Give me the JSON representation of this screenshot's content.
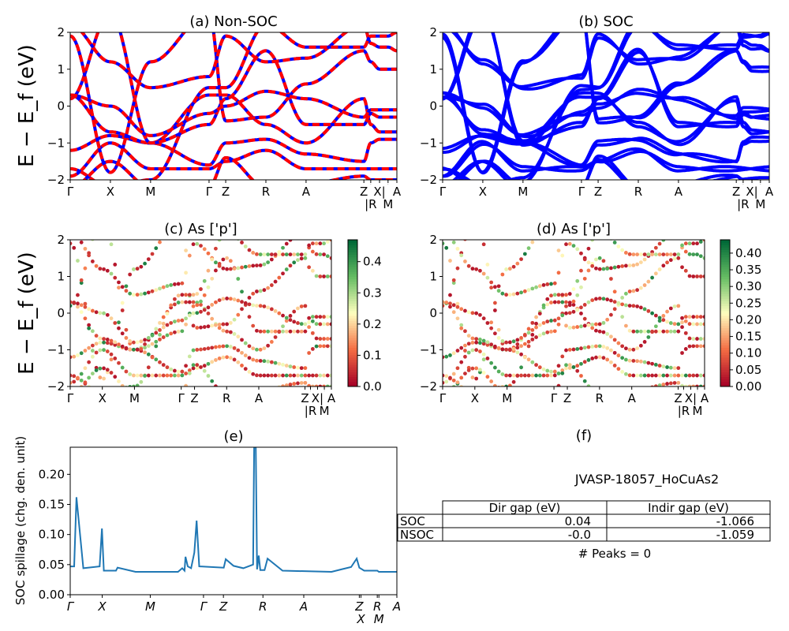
{
  "figure_id": "JVASP-18057_HoCuAs2",
  "chart_data": [
    {
      "panel": "a",
      "type": "line",
      "title": "(a) Non-SOC",
      "ylabel": "E − E_f (eV)",
      "ylim": [
        -2,
        2
      ],
      "yticks": [
        -2,
        -1,
        0,
        1,
        2
      ],
      "xticklabels": [
        "Γ",
        "X",
        "M",
        "Γ",
        "Z",
        "R",
        "A",
        "Z",
        "|R",
        "X|",
        "M",
        "A"
      ],
      "k": [
        0,
        0.123,
        0.246,
        0.425,
        0.476,
        0.599,
        0.722,
        0.899,
        0.92,
        0.947,
        0.973,
        1
      ],
      "bands": [
        [
          -1.9,
          -1.0,
          -1.7,
          -1.7,
          -1.5,
          -1.2,
          -1.7,
          -1.7,
          -1.7,
          -1.7,
          -1.7,
          -1.7
        ],
        [
          -1.2,
          -0.8,
          -1.0,
          -1.6,
          -1.0,
          -0.9,
          -1.3,
          -1.5,
          -1.0,
          -0.9,
          -0.9,
          -0.9
        ],
        [
          0.3,
          -0.7,
          -1.0,
          0.3,
          0.3,
          -0.5,
          -1.0,
          0.2,
          -0.5,
          -0.7,
          -0.7,
          -0.7
        ],
        [
          0.2,
          2.5,
          -1.0,
          -0.5,
          0.2,
          1.5,
          -0.5,
          -0.5,
          -0.2,
          -0.3,
          -0.3,
          -0.3
        ],
        [
          1.9,
          -1.8,
          1.2,
          2.5,
          -0.4,
          -0.3,
          0.6,
          1.5,
          1.2,
          1.0,
          1.0,
          1.0
        ],
        [
          2.2,
          1.2,
          0.5,
          0.8,
          1.9,
          1.2,
          1.3,
          2.2,
          1.7,
          1.6,
          1.6,
          1.5
        ],
        [
          -1.7,
          -2.2,
          -2.0,
          0.5,
          0.5,
          2.2,
          1.6,
          1.6,
          1.9,
          1.9,
          1.9,
          2.0
        ],
        [
          -2.2,
          -1.5,
          -2.2,
          -2.2,
          -1.4,
          -2.2,
          -2.1,
          -1.9,
          -2.0,
          -2.0,
          -2.0,
          -2.0
        ],
        [
          0.3,
          0,
          -0.8,
          -0.2,
          0.0,
          0.4,
          0.2,
          -0.3,
          -0.1,
          -0.1,
          -0.1,
          -0.1
        ]
      ],
      "colors": [
        "#ff0000",
        "#0000ff"
      ]
    },
    {
      "panel": "b",
      "type": "line",
      "title": "(b) SOC",
      "ylim": [
        -2,
        2
      ],
      "yticks": [
        -2,
        -1,
        0,
        1,
        2
      ],
      "xticklabels": [
        "Γ",
        "X",
        "M",
        "Γ",
        "Z",
        "R",
        "A",
        "Z",
        "|R",
        "X|",
        "M",
        "A"
      ],
      "colors": [
        "#0000ff"
      ]
    },
    {
      "panel": "c",
      "type": "scatter",
      "title": "(c)  As ['p']",
      "ylabel": "E − E_f (eV)",
      "ylim": [
        -2,
        2
      ],
      "yticks": [
        -2,
        -1,
        0,
        1,
        2
      ],
      "xticklabels": [
        "Γ",
        "X",
        "M",
        "Γ",
        "Z",
        "R",
        "A",
        "Z",
        "|R",
        "X|",
        "M",
        "A"
      ],
      "colorbar": {
        "colormap": "RdYlGn",
        "range": [
          0,
          0.47
        ],
        "ticks": [
          "0.0",
          "0.1",
          "0.2",
          "0.3",
          "0.4"
        ]
      }
    },
    {
      "panel": "d",
      "type": "scatter",
      "title": "(d) As ['p']",
      "ylim": [
        -2,
        2
      ],
      "yticks": [
        -2,
        -1,
        0,
        1,
        2
      ],
      "xticklabels": [
        "Γ",
        "X",
        "M",
        "Γ",
        "Z",
        "R",
        "A",
        "Z",
        "|R",
        "X|",
        "M",
        "A"
      ],
      "colorbar": {
        "colormap": "RdYlGn",
        "range": [
          0,
          0.44
        ],
        "ticks": [
          "0.00",
          "0.05",
          "0.10",
          "0.15",
          "0.20",
          "0.25",
          "0.30",
          "0.35",
          "0.40"
        ]
      }
    },
    {
      "panel": "e",
      "type": "line",
      "title": "(e)",
      "ylabel": "SOC spillage (chg. den. unit)",
      "ylim": [
        0,
        0.245
      ],
      "yticks": [
        "0.00",
        "0.05",
        "0.10",
        "0.15",
        "0.20"
      ],
      "xticklabels": [
        "Γ",
        "X",
        "M",
        "Γ",
        "Z",
        "R",
        "A",
        "Z",
        "X",
        "R",
        "M",
        "A"
      ],
      "xtick_k": [
        0,
        0.098,
        0.245,
        0.408,
        0.469,
        0.59,
        0.715,
        0.885,
        0.89,
        0.94,
        0.945,
        1
      ],
      "x": [
        0,
        0.012,
        0.019,
        0.04,
        0.09,
        0.097,
        0.103,
        0.14,
        0.145,
        0.2,
        0.33,
        0.343,
        0.35,
        0.353,
        0.36,
        0.37,
        0.38,
        0.387,
        0.395,
        0.47,
        0.476,
        0.5,
        0.53,
        0.56,
        0.563,
        0.568,
        0.572,
        0.577,
        0.582,
        0.595,
        0.604,
        0.65,
        0.8,
        0.83,
        0.86,
        0.877,
        0.885,
        0.9,
        0.94,
        0.945,
        1
      ],
      "y": [
        0.047,
        0.047,
        0.162,
        0.044,
        0.047,
        0.11,
        0.04,
        0.04,
        0.045,
        0.038,
        0.038,
        0.044,
        0.04,
        0.063,
        0.047,
        0.044,
        0.07,
        0.123,
        0.047,
        0.045,
        0.059,
        0.048,
        0.044,
        0.05,
        0.245,
        0.245,
        0.042,
        0.065,
        0.041,
        0.041,
        0.06,
        0.04,
        0.038,
        0.042,
        0.046,
        0.06,
        0.045,
        0.04,
        0.04,
        0.038,
        0.038
      ],
      "color": "#1f77b4"
    },
    {
      "panel": "f",
      "type": "table",
      "title": "(f)",
      "subtitle": "JVASP-18057_HoCuAs2",
      "columns": [
        "Dir gap (eV)",
        "Indir gap (eV)"
      ],
      "rows": [
        {
          "label": "SOC",
          "values": [
            "0.04",
            "-1.066"
          ]
        },
        {
          "label": "NSOC",
          "values": [
            "-0.0",
            "-1.059"
          ]
        }
      ],
      "footer": "# Peaks = 0"
    }
  ]
}
